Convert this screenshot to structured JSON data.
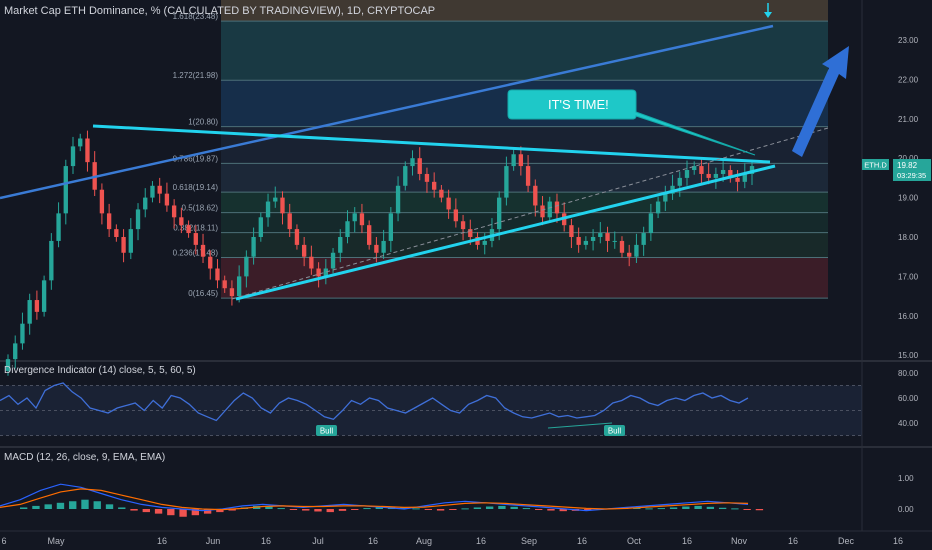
{
  "title": "Market Cap ETH Dominance, % (CALCULATED BY TRADINGVIEW), 1D, CRYPTOCAP",
  "annotation": "IT'S TIME!",
  "price_badge": {
    "symbol": "ETH.D",
    "price": "19.82",
    "countdown": "03:29:35"
  },
  "indicator_titles": {
    "divergence": "Divergence Indicator (14) close, 5, 5, 60, 5)",
    "macd": "MACD (12, 26, close, 9, EMA, EMA)"
  },
  "bull_label": "Bull",
  "colors": {
    "background": "#131722",
    "up": "#26a69a",
    "down": "#ef5350",
    "trendline": "#22d3ee",
    "channel": "#3a7bd5",
    "fib_line": "#4c6f77",
    "divergence_line": "#3f6fd8",
    "macd_line": "#2962ff",
    "signal_line": "#ff6d00"
  },
  "chart_data": [
    {
      "type": "candlestick",
      "title": "Market Cap ETH Dominance, % (CALCULATED BY TRADINGVIEW), 1D, CRYPTOCAP",
      "y_axis": {
        "ticks": [
          "23.00",
          "22.00",
          "21.00",
          "20.00",
          "19.00",
          "18.00",
          "17.00",
          "16.00",
          "15.00"
        ],
        "range": [
          15.0,
          23.5
        ]
      },
      "x_axis": {
        "ticks": [
          "6",
          "May",
          "16",
          "Jun",
          "16",
          "Jul",
          "16",
          "Aug",
          "16",
          "Sep",
          "16",
          "Oct",
          "16",
          "Nov",
          "16",
          "Dec",
          "16"
        ]
      },
      "fib_levels": [
        {
          "label": "1.618(23.48)",
          "value": 23.48
        },
        {
          "label": "1.272(21.98)",
          "value": 21.98
        },
        {
          "label": "1(20.80)",
          "value": 20.8
        },
        {
          "label": "0.786(19.87)",
          "value": 19.87
        },
        {
          "label": "0.618(19.14)",
          "value": 19.14
        },
        {
          "label": "0.5(18.62)",
          "value": 18.62
        },
        {
          "label": "0.382(18.11)",
          "value": 18.11
        },
        {
          "label": "0.236(17.48)",
          "value": 17.48
        },
        {
          "label": "0(16.45)",
          "value": 16.45
        }
      ],
      "closes": [
        14.9,
        15.3,
        15.8,
        16.4,
        16.1,
        16.9,
        17.9,
        18.6,
        19.8,
        20.3,
        20.5,
        19.9,
        19.2,
        18.6,
        18.2,
        18.0,
        17.6,
        18.2,
        18.7,
        19.0,
        19.3,
        19.1,
        18.8,
        18.5,
        18.3,
        18.1,
        17.8,
        17.5,
        17.2,
        16.9,
        16.7,
        16.5,
        17.0,
        17.5,
        18.0,
        18.5,
        18.9,
        19.0,
        18.6,
        18.2,
        17.8,
        17.5,
        17.2,
        17.0,
        17.2,
        17.6,
        18.0,
        18.4,
        18.6,
        18.3,
        17.8,
        17.6,
        17.9,
        18.6,
        19.3,
        19.8,
        20.0,
        19.6,
        19.4,
        19.2,
        19.0,
        18.7,
        18.4,
        18.2,
        18.0,
        17.8,
        17.9,
        18.2,
        19.0,
        19.8,
        20.1,
        19.8,
        19.3,
        18.8,
        18.5,
        18.9,
        18.6,
        18.3,
        18.0,
        17.8,
        17.9,
        18.0,
        18.1,
        17.9,
        17.9,
        17.6,
        17.5,
        17.8,
        18.1,
        18.6,
        18.9,
        19.1,
        19.3,
        19.5,
        19.7,
        19.8,
        19.6,
        19.5,
        19.6,
        19.7,
        19.5,
        19.4,
        19.6,
        19.8
      ]
    },
    {
      "type": "line",
      "title": "Divergence Indicator (14) close, 5, 5, 60, 5)",
      "y_axis": {
        "ticks": [
          "80.00",
          "60.00",
          "40.00"
        ],
        "range": [
          30,
          85
        ]
      },
      "values": [
        58,
        62,
        55,
        60,
        52,
        66,
        70,
        72,
        65,
        60,
        52,
        50,
        48,
        52,
        54,
        56,
        50,
        58,
        52,
        62,
        60,
        55,
        48,
        45,
        42,
        50,
        58,
        64,
        60,
        52,
        48,
        56,
        60,
        58,
        55,
        50,
        45,
        43,
        50,
        58,
        55,
        60,
        58,
        52,
        50,
        48,
        52,
        56,
        60,
        55,
        50,
        48,
        55,
        58,
        62,
        60,
        52,
        48,
        45,
        44,
        46,
        48,
        45,
        46,
        44,
        45,
        46,
        50,
        56,
        58,
        62,
        60,
        56,
        54,
        58,
        60,
        58,
        62,
        64,
        60,
        62,
        58,
        56,
        60
      ],
      "bull_labels": 2
    },
    {
      "type": "bar+line",
      "title": "MACD (12, 26, close, 9, EMA, EMA)",
      "y_axis": {
        "ticks": [
          "1.00",
          "0.00"
        ],
        "range": [
          -0.5,
          1.4
        ]
      },
      "histogram": [
        0.05,
        0.1,
        0.15,
        0.2,
        0.25,
        0.3,
        0.25,
        0.15,
        0.05,
        -0.05,
        -0.1,
        -0.15,
        -0.2,
        -0.25,
        -0.2,
        -0.15,
        -0.1,
        -0.05,
        0.05,
        0.1,
        0.08,
        0.03,
        -0.03,
        -0.05,
        -0.08,
        -0.1,
        -0.06,
        -0.02,
        0.03,
        0.06,
        0.08,
        0.05,
        0.02,
        -0.02,
        -0.05,
        -0.03,
        0.02,
        0.05,
        0.08,
        0.1,
        0.07,
        0.03,
        -0.02,
        -0.05,
        -0.07,
        -0.06,
        -0.03,
        0.01,
        0.03,
        0.05,
        0.04,
        0.02,
        0.03,
        0.05,
        0.08,
        0.1,
        0.07,
        0.04,
        0.02,
        -0.02,
        -0.04
      ],
      "macd": [
        0.1,
        0.3,
        0.6,
        0.8,
        0.7,
        0.5,
        0.3,
        0.15,
        0.05,
        0.0,
        -0.05,
        0.0,
        0.1,
        0.15,
        0.1,
        0.05,
        0.1,
        0.15,
        0.1,
        0.05,
        0.0,
        0.1,
        0.2,
        0.25,
        0.2,
        0.15,
        0.1,
        0.05,
        0.0,
        -0.05,
        0.0,
        0.05,
        0.1,
        0.15,
        0.2,
        0.25,
        0.2,
        0.15
      ],
      "signal": [
        0.05,
        0.15,
        0.35,
        0.55,
        0.65,
        0.6,
        0.45,
        0.3,
        0.15,
        0.05,
        0.0,
        -0.02,
        0.02,
        0.08,
        0.1,
        0.08,
        0.08,
        0.1,
        0.1,
        0.08,
        0.05,
        0.06,
        0.12,
        0.18,
        0.2,
        0.18,
        0.14,
        0.1,
        0.06,
        0.02,
        0.0,
        0.02,
        0.06,
        0.1,
        0.14,
        0.18,
        0.2,
        0.18
      ]
    }
  ]
}
